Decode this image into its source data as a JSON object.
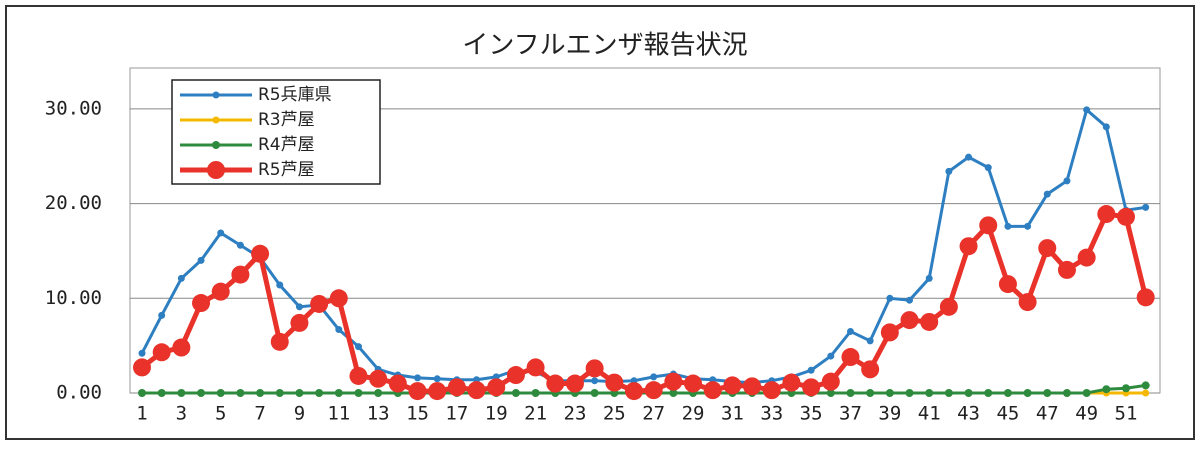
{
  "chart_data": {
    "type": "line",
    "title": "インフルエンザ報告状況",
    "categories": [
      "1",
      null,
      "3",
      null,
      "5",
      null,
      "7",
      null,
      "9",
      null,
      "11",
      null,
      "13",
      null,
      "15",
      null,
      "17",
      null,
      "19",
      null,
      "21",
      null,
      "23",
      null,
      "25",
      null,
      "27",
      null,
      "29",
      null,
      "31",
      null,
      "33",
      null,
      "35",
      null,
      "37",
      null,
      "39",
      null,
      "41",
      null,
      "43",
      null,
      "45",
      null,
      "47",
      null,
      "49",
      null,
      "51",
      null
    ],
    "series": [
      {
        "name": "R5兵庫県",
        "color": "#2e7fc1",
        "values": [
          4.2,
          8.2,
          12.1,
          14.0,
          16.9,
          15.6,
          14.3,
          11.4,
          9.1,
          9.3,
          6.7,
          4.9,
          2.5,
          1.9,
          1.6,
          1.5,
          1.4,
          1.4,
          1.7,
          2.4,
          2.2,
          1.3,
          1.3,
          1.3,
          1.2,
          1.3,
          1.7,
          2.0,
          1.5,
          1.4,
          1.2,
          1.1,
          1.3,
          1.7,
          2.4,
          3.9,
          6.5,
          5.5,
          10.0,
          9.8,
          12.1,
          23.4,
          24.9,
          23.8,
          17.6,
          17.6,
          21.0,
          22.4,
          29.9,
          28.1,
          19.3,
          19.6
        ]
      },
      {
        "name": "R3芦屋",
        "color": "#f5b800",
        "values": [
          0,
          0,
          0,
          0,
          0,
          0,
          0,
          0,
          0,
          0,
          0,
          0,
          0,
          0,
          0,
          0,
          0,
          0,
          0,
          0,
          0,
          0,
          0,
          0,
          0,
          0,
          0,
          0,
          0,
          0,
          0,
          0,
          0,
          0,
          0,
          0,
          0,
          0,
          0,
          0,
          0,
          0,
          0,
          0,
          0,
          0,
          0,
          0,
          0,
          0,
          0,
          0
        ]
      },
      {
        "name": "R4芦屋",
        "color": "#2e8b3e",
        "values": [
          0,
          0,
          0,
          0,
          0,
          0,
          0,
          0,
          0,
          0,
          0,
          0,
          0,
          0,
          0,
          0,
          0,
          0,
          0,
          0,
          0,
          0,
          0,
          0,
          0,
          0,
          0,
          0,
          0,
          0,
          0,
          0,
          0,
          0,
          0,
          0,
          0,
          0,
          0,
          0,
          0,
          0,
          0,
          0,
          0,
          0,
          0,
          0,
          0,
          0.4,
          0.5,
          0.8
        ]
      },
      {
        "name": "R5芦屋",
        "color": "#e8322a",
        "values": [
          2.7,
          4.3,
          4.8,
          9.5,
          10.7,
          12.5,
          14.7,
          5.4,
          7.4,
          9.4,
          10.0,
          1.8,
          1.5,
          1.0,
          0.2,
          0.2,
          0.6,
          0.3,
          0.6,
          1.9,
          2.7,
          1.0,
          1.0,
          2.6,
          1.1,
          0.2,
          0.3,
          1.2,
          1.0,
          0.3,
          0.8,
          0.7,
          0.3,
          1.1,
          0.6,
          1.2,
          3.8,
          2.5,
          6.4,
          7.7,
          7.5,
          9.1,
          15.5,
          17.7,
          11.5,
          9.6,
          15.3,
          13.0,
          14.3,
          18.9,
          18.6,
          10.1
        ]
      }
    ],
    "ylim": [
      0,
      34
    ],
    "yticks": [
      {
        "value": 0,
        "label": "0.00"
      },
      {
        "value": 10,
        "label": "10.00"
      },
      {
        "value": 20,
        "label": "20.00"
      },
      {
        "value": 30,
        "label": "30.00"
      }
    ],
    "grid": true,
    "legend": "top-left"
  }
}
